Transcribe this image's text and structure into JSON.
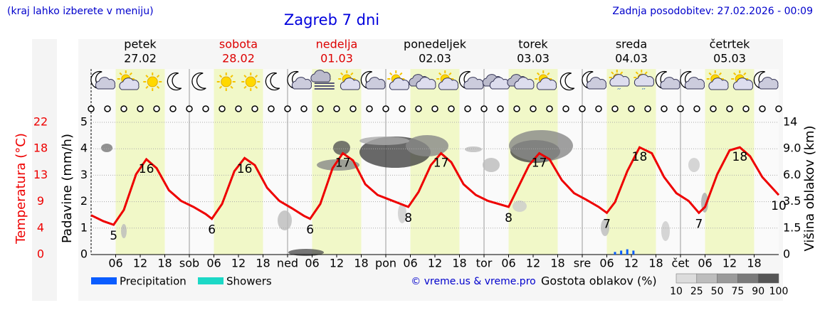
{
  "header": {
    "note": "(kraj lahko izberete v meniju)",
    "title": "Zagreb 7 dni",
    "updated": "Zadnja posodobitev: 27.02.2026 - 00:09"
  },
  "chart_data": {
    "type": "meteogram",
    "days": [
      {
        "name": "petek",
        "date": "27.02",
        "color": "#000000"
      },
      {
        "name": "sobota",
        "date": "28.02",
        "color": "#dd0000"
      },
      {
        "name": "nedelja",
        "date": "01.03",
        "color": "#dd0000"
      },
      {
        "name": "ponedeljek",
        "date": "02.03",
        "color": "#000000"
      },
      {
        "name": "torek",
        "date": "03.03",
        "color": "#000000"
      },
      {
        "name": "sreda",
        "date": "04.03",
        "color": "#000000"
      },
      {
        "name": "četrtek",
        "date": "05.03",
        "color": "#000000"
      }
    ],
    "xlim": [
      0,
      168
    ],
    "xticks": [
      {
        "value": 6,
        "label": "06"
      },
      12,
      18,
      {
        "value": 24,
        "label": "sob"
      },
      {
        "value": 30,
        "label": "06"
      },
      {
        "value": 36,
        "label": "12"
      },
      {
        "value": 42,
        "label": "18"
      },
      {
        "value": 48,
        "label": "ned"
      },
      {
        "value": 54,
        "label": "06"
      },
      {
        "value": 60,
        "label": "12"
      },
      {
        "value": 66,
        "label": "18"
      },
      {
        "value": 72,
        "label": "pon"
      },
      {
        "value": 78,
        "label": "06"
      },
      {
        "value": 84,
        "label": "12"
      },
      {
        "value": 90,
        "label": "18"
      },
      {
        "value": 96,
        "label": "tor"
      },
      {
        "value": 102,
        "label": "06"
      },
      {
        "value": 108,
        "label": "12"
      },
      {
        "value": 114,
        "label": "18"
      },
      {
        "value": 120,
        "label": "sre"
      },
      {
        "value": 126,
        "label": "06"
      },
      {
        "value": 132,
        "label": "12"
      },
      {
        "value": 138,
        "label": "18"
      },
      {
        "value": 144,
        "label": "čet"
      },
      {
        "value": 150,
        "label": "06"
      },
      {
        "value": 156,
        "label": "12"
      },
      {
        "value": 162,
        "label": "18"
      }
    ],
    "ylabel": "Padavine (mm/h)",
    "ylim": [
      0,
      5
    ],
    "yticks": [
      0,
      1,
      2,
      3,
      4,
      5
    ],
    "y2label": "Višina oblakov (km)",
    "y2ticks": [
      0,
      1.5,
      3.5,
      {
        "value": 6,
        "label": "6.0"
      },
      {
        "value": 9,
        "label": "9.0"
      },
      14
    ],
    "temperature": {
      "name": "Temperatura (°C)",
      "color": "#ee0000",
      "ylim": [
        0,
        22.2
      ],
      "yticks": [
        0,
        {
          "value": 4.44,
          "label": "4"
        },
        {
          "value": 8.88,
          "label": "9"
        },
        {
          "value": 13.32,
          "label": "13"
        },
        {
          "value": 17.76,
          "label": "18"
        },
        {
          "value": 22.2,
          "label": "22"
        }
      ],
      "x": [
        0,
        3,
        5.5,
        8,
        11,
        13.5,
        16,
        19,
        22,
        25,
        28,
        29.5,
        32,
        35,
        37.5,
        40,
        43,
        46,
        49,
        52,
        53.5,
        56,
        59,
        61.5,
        64,
        67,
        70,
        73,
        76,
        77.5,
        80,
        83,
        85.5,
        88,
        91,
        94,
        97,
        100,
        102,
        104,
        107,
        109.5,
        112,
        115,
        118,
        121,
        124,
        126,
        128,
        131,
        134,
        137,
        140,
        143,
        146,
        148.5,
        150,
        153,
        156,
        158.5,
        161,
        164,
        168
      ],
      "values": [
        6.6,
        5.6,
        5.0,
        7.5,
        13.5,
        16.0,
        14.5,
        10.8,
        9.0,
        8.0,
        6.8,
        6.0,
        8.5,
        14.0,
        16.2,
        15.0,
        11.2,
        9.0,
        7.8,
        6.5,
        6.0,
        8.5,
        14.5,
        17.0,
        15.8,
        11.8,
        10.0,
        9.2,
        8.4,
        8.0,
        10.5,
        15.0,
        17.0,
        15.5,
        11.8,
        10.0,
        9.0,
        8.4,
        8.0,
        10.8,
        15.0,
        17.0,
        16.0,
        12.5,
        10.3,
        9.2,
        8.0,
        7.0,
        8.8,
        14.0,
        18.0,
        17.0,
        13.0,
        10.3,
        9.0,
        7.0,
        8.0,
        13.5,
        17.5,
        18.0,
        16.5,
        13.0,
        10.0
      ],
      "annotations": [
        {
          "x": 5.5,
          "value": 5
        },
        {
          "x": 13.5,
          "value": 16
        },
        {
          "x": 29.5,
          "value": 6
        },
        {
          "x": 37.5,
          "value": 16
        },
        {
          "x": 53.5,
          "value": 6
        },
        {
          "x": 61.5,
          "value": 17
        },
        {
          "x": 77.5,
          "value": 8
        },
        {
          "x": 85.5,
          "value": 17
        },
        {
          "x": 102,
          "value": 8
        },
        {
          "x": 109.5,
          "value": 17
        },
        {
          "x": 126,
          "value": 7
        },
        {
          "x": 134,
          "value": 18
        },
        {
          "x": 148.5,
          "value": 7
        },
        {
          "x": 158.5,
          "value": 18
        },
        {
          "x": 168,
          "value": 10
        }
      ]
    },
    "series": [
      {
        "name": "Precipitation",
        "color": "#0a5cff",
        "x": [
          128,
          129.5,
          131,
          132.5
        ],
        "values": [
          0.1,
          0.15,
          0.2,
          0.15
        ]
      },
      {
        "name": "Showers",
        "color": "#1cd8c6",
        "x": [],
        "values": []
      }
    ],
    "cloud_scale": {
      "title": "Gostota oblakov (%)",
      "values": [
        10,
        25,
        50,
        75,
        90,
        100
      ]
    },
    "credit": "© vreme.us & vreme.pro"
  }
}
